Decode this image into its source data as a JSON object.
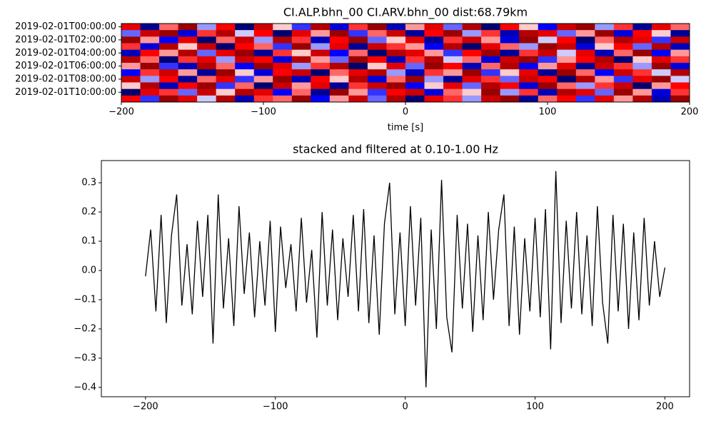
{
  "chart_data": [
    {
      "type": "heatmap",
      "title": "CI.ALP.bhn_00 CI.ARV.bhn_00  dist:68.79km",
      "x_label": "time [s]",
      "rows": [
        "2019-02-01T00:00:00",
        null,
        "2019-02-01T02:00:00",
        null,
        "2019-02-01T04:00:00",
        null,
        "2019-02-01T06:00:00",
        null,
        "2019-02-01T08:00:00",
        null,
        "2019-02-01T10:00:00",
        null
      ],
      "xlim": [
        -200,
        200
      ],
      "xticks": [
        {
          "value": -200,
          "label": "−200"
        },
        {
          "value": -100,
          "label": "−100"
        },
        0,
        100,
        200
      ],
      "zlim": [
        -1,
        1
      ],
      "colors": [
        "#00004d",
        "#0000ff",
        "#ffffff",
        "#ff0000",
        "#800000"
      ],
      "z": [
        [
          0.6,
          -0.8,
          0.3,
          0.9,
          -0.2,
          0.5,
          -0.9,
          0.7,
          0.1,
          -0.4,
          0.8,
          -0.6,
          0.4,
          0.9,
          -0.7,
          0.2,
          0.6,
          -0.3,
          0.8,
          -0.9,
          0.5,
          0.1,
          -0.5,
          0.7,
          0.9,
          -0.2,
          0.4,
          -0.8,
          0.6,
          0.3
        ],
        [
          -0.3,
          0.7,
          0.9,
          -0.6,
          0.4,
          0.8,
          -0.1,
          0.5,
          -0.9,
          0.6,
          0.2,
          0.9,
          -0.4,
          0.3,
          0.7,
          -0.8,
          0.5,
          0.9,
          -0.2,
          0.4,
          -0.7,
          0.8,
          0.6,
          -0.3,
          0.2,
          0.9,
          -0.6,
          0.5,
          0.1,
          -0.8
        ],
        [
          0.9,
          0.2,
          -0.5,
          0.6,
          -0.9,
          0.3,
          0.7,
          -0.2,
          0.8,
          0.4,
          -0.7,
          0.5,
          0.9,
          -0.3,
          0.1,
          0.6,
          -0.8,
          0.4,
          0.7,
          0.2,
          -0.6,
          0.9,
          -0.1,
          0.5,
          -0.9,
          0.3,
          0.8,
          0.6,
          -0.4,
          0.7
        ],
        [
          0.4,
          -0.6,
          0.8,
          0.1,
          0.7,
          -0.9,
          0.5,
          0.3,
          -0.4,
          0.9,
          -0.2,
          0.6,
          -0.8,
          0.7,
          0.4,
          0.2,
          -0.5,
          0.8,
          -0.9,
          0.6,
          0.3,
          -0.2,
          0.9,
          0.7,
          -0.6,
          0.1,
          0.5,
          -0.3,
          0.8,
          -0.7
        ],
        [
          -0.7,
          0.5,
          0.2,
          0.8,
          -0.3,
          0.6,
          0.9,
          -0.8,
          0.4,
          0.1,
          0.7,
          -0.5,
          0.3,
          -0.9,
          0.8,
          0.6,
          0.2,
          -0.4,
          0.5,
          0.9,
          -0.8,
          0.4,
          0.7,
          -0.1,
          0.6,
          -0.7,
          0.3,
          0.9,
          -0.5,
          0.2
        ],
        [
          0.8,
          0.3,
          -0.9,
          0.4,
          0.6,
          -0.2,
          0.7,
          0.5,
          -0.6,
          0.8,
          0.2,
          -0.3,
          0.9,
          0.5,
          -0.7,
          0.4,
          0.8,
          -0.1,
          0.3,
          -0.6,
          0.7,
          0.9,
          -0.4,
          0.2,
          0.5,
          0.8,
          -0.9,
          0.1,
          0.6,
          0.4
        ],
        [
          0.2,
          0.9,
          -0.4,
          -0.7,
          0.8,
          0.3,
          -0.5,
          0.9,
          0.6,
          -0.2,
          0.4,
          0.8,
          -0.9,
          0.1,
          0.6,
          -0.3,
          0.9,
          0.5,
          -0.7,
          0.3,
          0.8,
          -0.5,
          0.2,
          0.6,
          -0.8,
          0.7,
          0.4,
          -0.2,
          0.9,
          -0.6
        ],
        [
          -0.5,
          0.4,
          0.7,
          0.2,
          -0.8,
          0.9,
          0.1,
          -0.6,
          0.5,
          0.7,
          -0.9,
          0.3,
          0.6,
          0.8,
          -0.2,
          -0.7,
          0.4,
          0.2,
          0.9,
          -0.4,
          0.1,
          0.6,
          -0.8,
          0.9,
          0.3,
          -0.5,
          0.7,
          0.4,
          -0.1,
          0.8
        ],
        [
          0.7,
          -0.2,
          0.5,
          -0.8,
          0.3,
          0.6,
          -0.4,
          0.2,
          0.9,
          -0.7,
          0.5,
          0.1,
          0.8,
          -0.6,
          0.3,
          0.9,
          -0.2,
          -0.8,
          0.6,
          0.4,
          -0.3,
          0.7,
          0.5,
          -0.9,
          0.8,
          0.2,
          -0.4,
          0.6,
          0.9,
          -0.1
        ],
        [
          0.1,
          0.8,
          -0.7,
          0.5,
          0.9,
          -0.4,
          0.3,
          -0.9,
          0.7,
          0.2,
          0.6,
          -0.8,
          0.4,
          0.7,
          0.9,
          -0.5,
          0.1,
          0.6,
          -0.3,
          0.8,
          0.5,
          -0.6,
          0.9,
          0.3,
          -0.2,
          0.4,
          0.7,
          -0.9,
          0.2,
          0.5
        ],
        [
          -0.9,
          0.6,
          0.4,
          -0.3,
          0.7,
          0.1,
          0.8,
          0.6,
          -0.5,
          0.3,
          -0.8,
          0.9,
          0.2,
          -0.4,
          0.5,
          0.7,
          -0.6,
          0.3,
          0.1,
          0.9,
          -0.2,
          0.4,
          -0.7,
          0.8,
          0.6,
          -0.3,
          0.9,
          0.2,
          -0.6,
          0.4
        ],
        [
          0.5,
          -0.4,
          0.9,
          0.6,
          -0.1,
          0.8,
          -0.7,
          0.4,
          0.3,
          0.9,
          -0.5,
          0.2,
          0.7,
          -0.3,
          0.8,
          -0.9,
          0.6,
          0.4,
          -0.2,
          0.7,
          0.9,
          -0.8,
          0.3,
          0.5,
          -0.4,
          0.6,
          0.2,
          0.8,
          -0.7,
          0.9
        ]
      ]
    },
    {
      "type": "line",
      "title": "stacked and filtered at 0.10-1.00 Hz",
      "color": "#000000",
      "xlim": [
        -234,
        219
      ],
      "ylim": [
        -0.432,
        0.376
      ],
      "xticks": [
        {
          "value": -200,
          "label": "−200"
        },
        {
          "value": -100,
          "label": "−100"
        },
        0,
        100,
        200
      ],
      "yticks": [
        {
          "value": -0.4,
          "label": "−0.4"
        },
        {
          "value": -0.3,
          "label": "−0.3"
        },
        {
          "value": -0.2,
          "label": "−0.2"
        },
        {
          "value": -0.1,
          "label": "−0.1"
        },
        {
          "value": 0,
          "label": "0.0"
        },
        0.1,
        0.2,
        0.3
      ],
      "x": [
        -200,
        -196,
        -192,
        -188,
        -184,
        -180,
        -176,
        -172,
        -168,
        -164,
        -160,
        -156,
        -152,
        -148,
        -144,
        -140,
        -136,
        -132,
        -128,
        -124,
        -120,
        -116,
        -112,
        -108,
        -104,
        -100,
        -96,
        -92,
        -88,
        -84,
        -80,
        -76,
        -72,
        -68,
        -64,
        -60,
        -56,
        -52,
        -48,
        -44,
        -40,
        -36,
        -32,
        -28,
        -24,
        -20,
        -16,
        -12,
        -8,
        -4,
        0,
        4,
        8,
        12,
        16,
        20,
        24,
        28,
        32,
        36,
        40,
        44,
        48,
        52,
        56,
        60,
        64,
        68,
        72,
        76,
        80,
        84,
        88,
        92,
        96,
        100,
        104,
        108,
        112,
        116,
        120,
        124,
        128,
        132,
        136,
        140,
        144,
        148,
        152,
        156,
        160,
        164,
        168,
        172,
        176,
        180,
        184,
        188,
        192,
        196,
        200
      ],
      "values": [
        -0.02,
        0.14,
        -0.14,
        0.19,
        -0.18,
        0.12,
        0.26,
        -0.12,
        0.09,
        -0.15,
        0.17,
        -0.09,
        0.19,
        -0.25,
        0.26,
        -0.13,
        0.11,
        -0.19,
        0.22,
        -0.08,
        0.13,
        -0.16,
        0.1,
        -0.12,
        0.17,
        -0.21,
        0.15,
        -0.06,
        0.09,
        -0.14,
        0.18,
        -0.11,
        0.07,
        -0.23,
        0.2,
        -0.12,
        0.14,
        -0.17,
        0.11,
        -0.09,
        0.19,
        -0.14,
        0.21,
        -0.18,
        0.12,
        -0.22,
        0.16,
        0.3,
        -0.15,
        0.13,
        -0.19,
        0.22,
        -0.12,
        0.18,
        -0.4,
        0.14,
        -0.2,
        0.31,
        -0.16,
        -0.28,
        0.19,
        -0.13,
        0.16,
        -0.21,
        0.12,
        -0.17,
        0.2,
        -0.1,
        0.14,
        0.26,
        -0.19,
        0.15,
        -0.22,
        0.11,
        -0.14,
        0.18,
        -0.16,
        0.21,
        -0.27,
        0.34,
        -0.18,
        0.17,
        -0.13,
        0.2,
        -0.15,
        0.12,
        -0.19,
        0.22,
        -0.11,
        -0.25,
        0.19,
        -0.14,
        0.16,
        -0.2,
        0.13,
        -0.17,
        0.18,
        -0.12,
        0.1,
        -0.09,
        0.01
      ]
    }
  ]
}
